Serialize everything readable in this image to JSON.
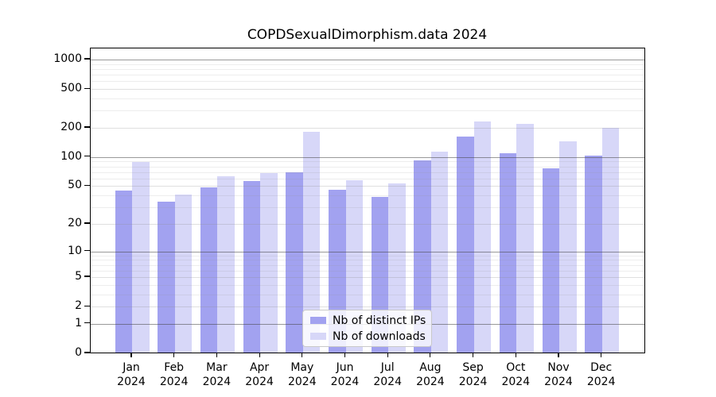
{
  "chart_data": {
    "type": "bar",
    "title": "COPDSexualDimorphism.data 2024",
    "x_categories": [
      {
        "month": "Jan",
        "year": "2024"
      },
      {
        "month": "Feb",
        "year": "2024"
      },
      {
        "month": "Mar",
        "year": "2024"
      },
      {
        "month": "Apr",
        "year": "2024"
      },
      {
        "month": "May",
        "year": "2024"
      },
      {
        "month": "Jun",
        "year": "2024"
      },
      {
        "month": "Jul",
        "year": "2024"
      },
      {
        "month": "Aug",
        "year": "2024"
      },
      {
        "month": "Sep",
        "year": "2024"
      },
      {
        "month": "Oct",
        "year": "2024"
      },
      {
        "month": "Nov",
        "year": "2024"
      },
      {
        "month": "Dec",
        "year": "2024"
      }
    ],
    "series": [
      {
        "name": "Nb of distinct IPs",
        "color": "#a2a2f0",
        "values": [
          44,
          34,
          48,
          56,
          68,
          45,
          38,
          91,
          160,
          107,
          75,
          101
        ]
      },
      {
        "name": "Nb of downloads",
        "color": "#d7d7f8",
        "values": [
          88,
          40,
          62,
          67,
          178,
          57,
          52,
          112,
          230,
          217,
          142,
          196
        ]
      }
    ],
    "y_scale": "log10(value+1)",
    "ylim": [
      0,
      1000
    ],
    "y_ticks": [
      0,
      1,
      2,
      5,
      10,
      20,
      50,
      100,
      200,
      500,
      1000
    ],
    "y_soft_gridlines": [
      2,
      5,
      20,
      50,
      200,
      500
    ],
    "y_major_gridlines": [
      1,
      10,
      100,
      1000
    ],
    "y_minor_gridlines": [
      3,
      4,
      6,
      7,
      8,
      9,
      30,
      40,
      60,
      70,
      80,
      90,
      300,
      400,
      600,
      700,
      800,
      900
    ],
    "grid": true,
    "legend_position": "lower center"
  }
}
